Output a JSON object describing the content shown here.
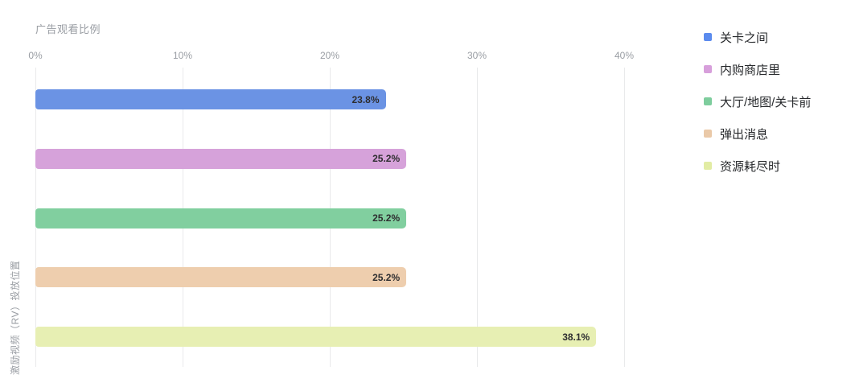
{
  "chart_data": {
    "type": "bar",
    "orientation": "horizontal",
    "title": "广告观看比例",
    "ylabel": "激励视频（RV）投放位置",
    "xlabel": "",
    "categories": [
      "关卡之间",
      "内购商店里",
      "大厅/地图/关卡前",
      "弹出消息",
      "资源耗尽时"
    ],
    "values": [
      23.8,
      25.2,
      25.2,
      25.2,
      38.1
    ],
    "value_labels": [
      "23.8%",
      "25.2%",
      "25.2%",
      "25.2%",
      "38.1%"
    ],
    "xticks": [
      "0%",
      "10%",
      "20%",
      "30%",
      "40%"
    ],
    "xtick_values": [
      0,
      10,
      20,
      30,
      40
    ],
    "xlim": [
      0,
      40
    ],
    "grid": "vertical-only",
    "legend_position": "right",
    "bar_colors": [
      "#6b93e4",
      "#d6a2da",
      "#81cf9f",
      "#eeceae",
      "#e7efb3"
    ],
    "legend_swatch_colors": [
      "#5b8bee",
      "#d79fdb",
      "#7ecd9d",
      "#eac9a8",
      "#e2eca4"
    ],
    "value_label_color": "#2e2e30",
    "axis_text_color": "#999da3"
  }
}
